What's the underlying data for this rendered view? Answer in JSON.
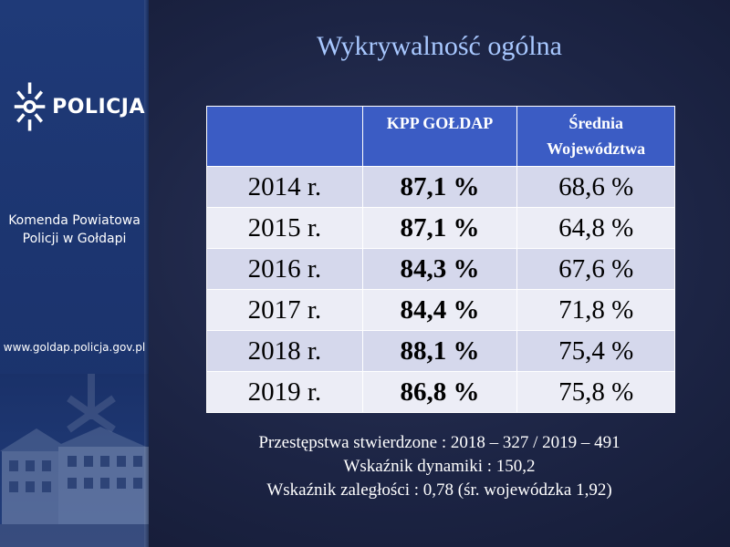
{
  "sidebar": {
    "logo_text": "POLICJA",
    "org_line1": "Komenda Powiatowa",
    "org_line2": "Policji w Gołdapi",
    "url": "www.goldap.policja.gov.pl"
  },
  "title": "Wykrywalność ogólna",
  "table": {
    "headers": [
      "",
      "KPP  GOŁDAP",
      "Średnia Województwa"
    ],
    "header_lines": {
      "col2": "KPP  GOŁDAP",
      "col3_line1": "Średnia",
      "col3_line2": "Województwa"
    },
    "rows": [
      {
        "year": "2014 r.",
        "kpp": "87,1 %",
        "avg": "68,6 %"
      },
      {
        "year": "2015 r.",
        "kpp": "87,1 %",
        "avg": "64,8 %"
      },
      {
        "year": "2016 r.",
        "kpp": "84,3 %",
        "avg": "67,6 %"
      },
      {
        "year": "2017 r.",
        "kpp": "84,4 %",
        "avg": "71,8 %"
      },
      {
        "year": "2018 r.",
        "kpp": "88,1 %",
        "avg": "75,4 %"
      },
      {
        "year": "2019 r.",
        "kpp": "86,8 %",
        "avg": "75,8 %"
      }
    ]
  },
  "footnotes": [
    "Przestępstwa stwierdzone : 2018 – 327 / 2019 – 491",
    "Wskaźnik dynamiki : 150,2",
    "Wskaźnik zaległości : 0,78 (śr. wojewódzka 1,92)"
  ],
  "colors": {
    "header_bg": "#3b5cc4",
    "title": "#a8c8ff",
    "sidebar": "#1f3a78"
  }
}
